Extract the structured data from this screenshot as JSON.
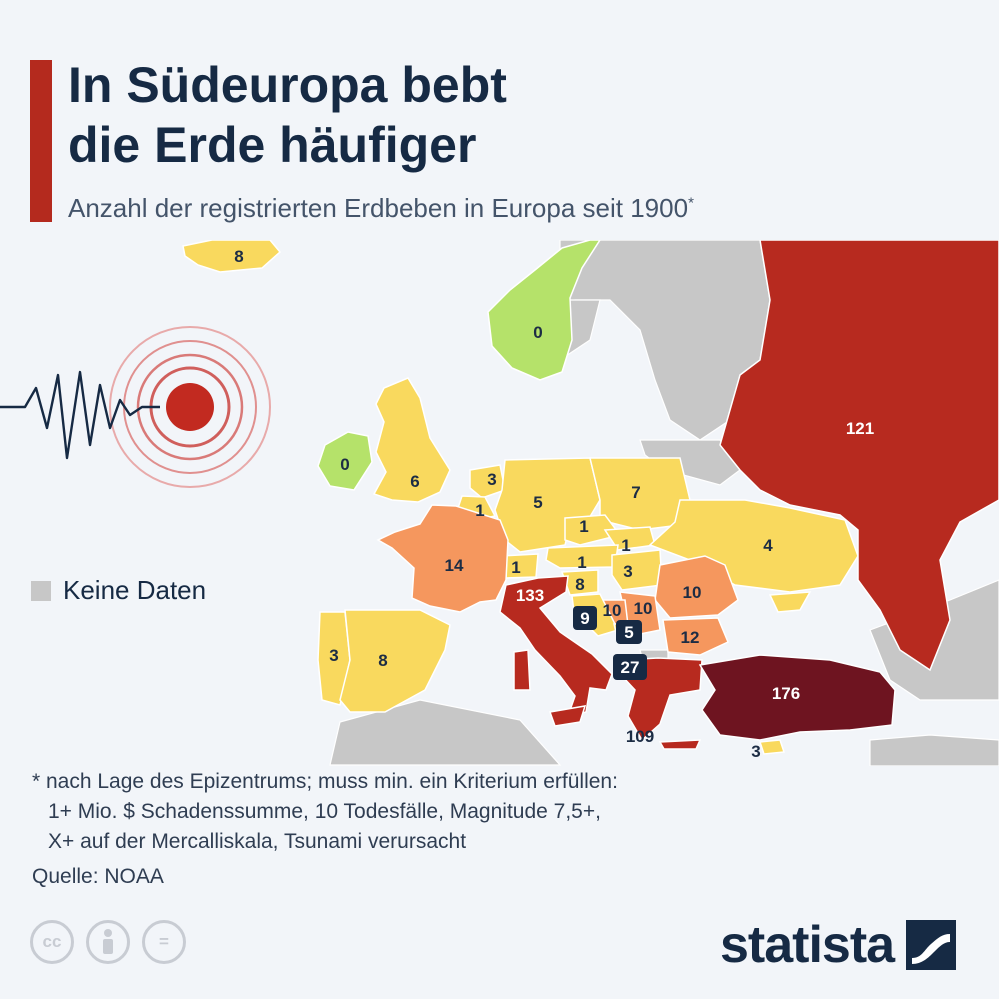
{
  "title": {
    "line1": "In Südeuropa bebt",
    "line2": "die Erde häufiger"
  },
  "subtitle": "Anzahl der registrierten Erdbeben in Europa seit 1900",
  "subtitle_marker": "*",
  "legend": {
    "no_data_label": "Keine Daten",
    "no_data_color": "#c7c7c7"
  },
  "color_scale": {
    "zero": "#b5e26a",
    "low": "#f9d95e",
    "medium": "#f5975e",
    "high": "#b72a1f",
    "highest": "#6e1420",
    "no_data": "#c7c7c7"
  },
  "countries": {
    "island": "8",
    "norwegen": "0",
    "irland": "0",
    "grossbritannien": "6",
    "niederlande": "3",
    "belgien": "1",
    "deutschland": "5",
    "polen": "7",
    "tschechien": "1",
    "ukraine": "4",
    "russland": "121",
    "frankreich": "14",
    "oesterreich": "1",
    "slowakei": "1",
    "schweiz": "1",
    "ungarn": "3",
    "rumaenien": "10",
    "slowenien": "8",
    "italien": "133",
    "kroatien": "9",
    "bosnien": "10",
    "serbien": "10",
    "montenegro": "5",
    "bulgarien": "12",
    "albanien": "27",
    "portugal": "3",
    "spanien": "8",
    "griechenland": "109",
    "tuerkei": "176",
    "zypern": "3"
  },
  "footnote": {
    "line1": "* nach Lage des Epizentrums; muss min. ein Kriterium erfüllen:",
    "line2": "1+ Mio. $ Schadenssumme, 10 Todesfälle, Magnitude 7,5+,",
    "line3": "X+ auf der Mercalliskala, Tsunami verursacht"
  },
  "source": "Quelle: NOAA",
  "license_icons": {
    "cc": "cc",
    "by": "person-icon",
    "nd": "="
  },
  "brand": "statista"
}
